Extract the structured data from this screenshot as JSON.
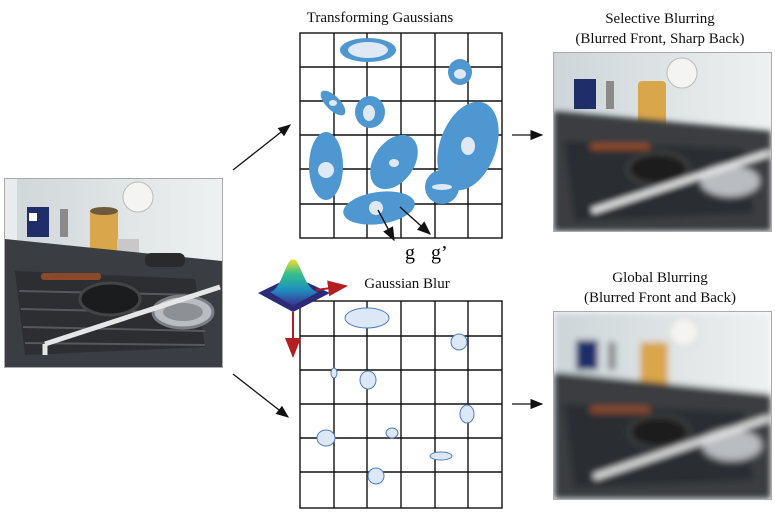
{
  "titles": {
    "transforming": "Transforming Gaussians",
    "gaussian_blur": "Gaussian Blur",
    "selective_line1": "Selective Blurring",
    "selective_line2": "(Blurred Front, Sharp Back)",
    "global_line1": "Global Blurring",
    "global_line2": "(Blurred Front and Back)"
  },
  "vector_labels": {
    "g": "g",
    "g_prime": "g’"
  },
  "colors": {
    "gaussian_blue": "#4f97d0",
    "gaussian_core": "#dfe9f6",
    "small_gaussian_fill": "#dde8f7",
    "small_gaussian_stroke": "#4f7cc0",
    "grid": "#111111",
    "axis_arrow": "#b41e1e"
  },
  "icons": {
    "scene_photo": "kitchen-dish-rack-photo",
    "blur_kernel": "gaussian-surface-plot-icon"
  }
}
